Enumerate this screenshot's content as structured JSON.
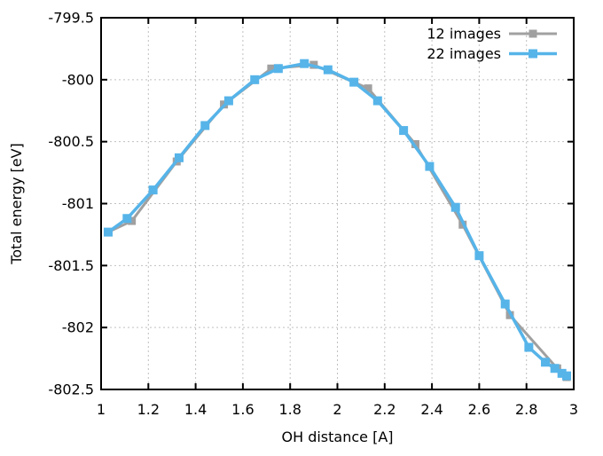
{
  "chart_data": {
    "type": "line",
    "title": "",
    "xlabel": "OH distance [A]",
    "ylabel": "Total energy [eV]",
    "xlim": [
      1,
      3
    ],
    "ylim": [
      -802.5,
      -799.5
    ],
    "xticks": [
      1,
      1.2,
      1.4,
      1.6,
      1.8,
      2,
      2.2,
      2.4,
      2.6,
      2.8,
      3
    ],
    "xtick_labels": [
      "1",
      "1.2",
      "1.4",
      "1.6",
      "1.8",
      "2",
      "2.2",
      "2.4",
      "2.6",
      "2.8",
      "3"
    ],
    "yticks": [
      -799.5,
      -800,
      -800.5,
      -801,
      -801.5,
      -802,
      -802.5
    ],
    "ytick_labels": [
      "-799.5",
      "-800",
      "-800.5",
      "-801",
      "-801.5",
      "-802",
      "-802.5"
    ],
    "grid": true,
    "grid_color": "#c0c0c0",
    "border_color": "#000000",
    "legend_position": "top-right",
    "series": [
      {
        "name": "12 images",
        "color": "#a0a0a0",
        "marker": "square",
        "marker_size": 9,
        "line_width": 3,
        "x": [
          1.03,
          1.13,
          1.32,
          1.52,
          1.72,
          1.9,
          2.13,
          2.33,
          2.53,
          2.73,
          2.93,
          2.97
        ],
        "y": [
          -801.23,
          -801.14,
          -800.66,
          -800.2,
          -799.91,
          -799.88,
          -800.07,
          -800.52,
          -801.17,
          -801.9,
          -802.33,
          -802.4
        ]
      },
      {
        "name": "22 images",
        "color": "#56b4e9",
        "marker": "square",
        "marker_size": 10,
        "line_width": 3.5,
        "x": [
          1.03,
          1.11,
          1.22,
          1.33,
          1.44,
          1.54,
          1.65,
          1.75,
          1.86,
          1.96,
          2.07,
          2.17,
          2.28,
          2.39,
          2.5,
          2.6,
          2.71,
          2.81,
          2.88,
          2.92,
          2.95,
          2.97
        ],
        "y": [
          -801.23,
          -801.12,
          -800.89,
          -800.63,
          -800.37,
          -800.17,
          -800.0,
          -799.91,
          -799.87,
          -799.92,
          -800.02,
          -800.17,
          -800.41,
          -800.7,
          -801.03,
          -801.42,
          -801.81,
          -802.16,
          -802.28,
          -802.33,
          -802.37,
          -802.39
        ]
      }
    ]
  }
}
